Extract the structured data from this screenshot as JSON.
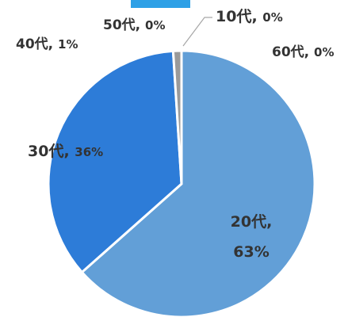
{
  "chart_data": {
    "type": "pie",
    "title": "",
    "slices": [
      {
        "category": "10代",
        "percent_label": "0%",
        "value": 0.0,
        "color": "#2b74c8"
      },
      {
        "category": "20代",
        "percent_label": "63%",
        "value": 63.0,
        "color": "#629fd7"
      },
      {
        "category": "30代",
        "percent_label": "36%",
        "value": 35.3,
        "color": "#2d7cd8"
      },
      {
        "category": "40代",
        "percent_label": "1%",
        "value": 1.0,
        "color": "#9a9a9a"
      },
      {
        "category": "50代",
        "percent_label": "0%",
        "value": 0.0,
        "color": "#c8a020"
      },
      {
        "category": "60代",
        "percent_label": "0%",
        "value": 0.0,
        "color": "#3c6fb0"
      }
    ],
    "legend": "none",
    "data_labels": "category, percent"
  },
  "colors": {
    "title_bar": "#2ea0e6",
    "label_text": "#333333",
    "separator": "#ffffff"
  }
}
